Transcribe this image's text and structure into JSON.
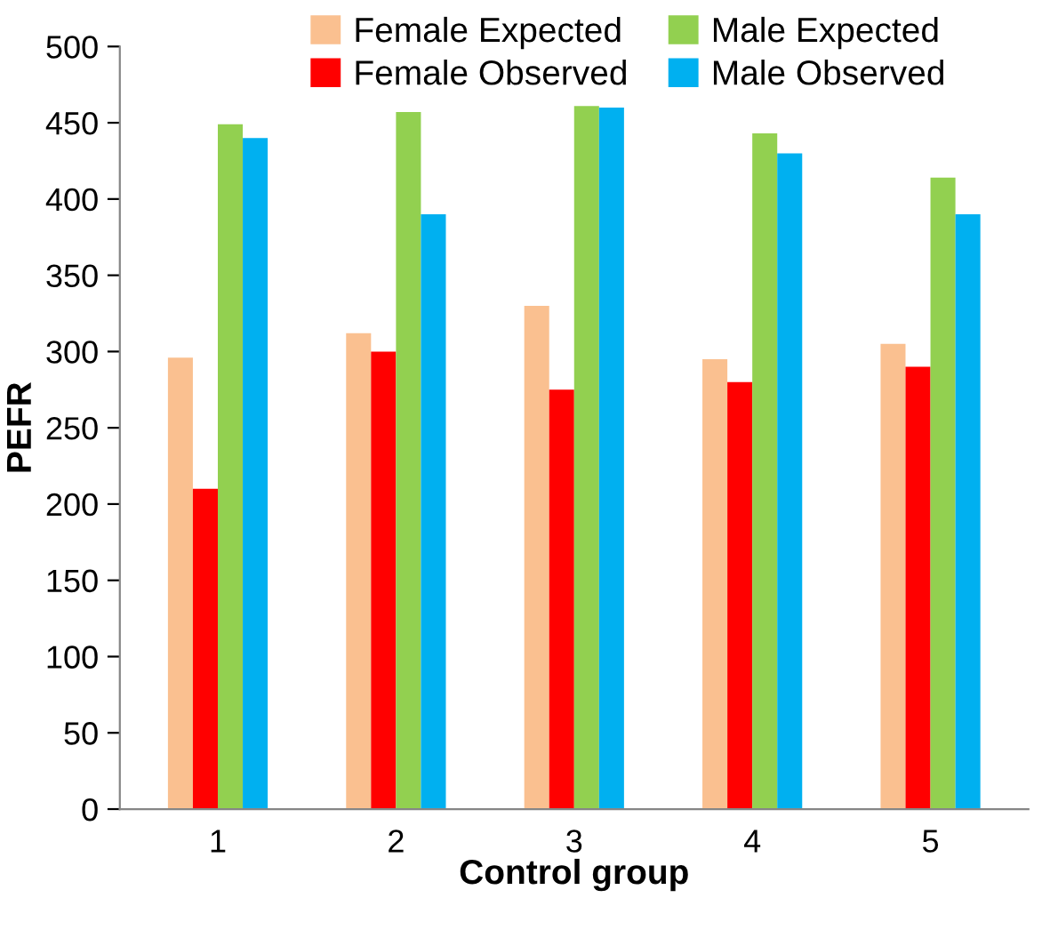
{
  "chart_data": {
    "type": "bar",
    "xlabel": "Control group",
    "ylabel": "PEFR",
    "categories": [
      "1",
      "2",
      "3",
      "4",
      "5"
    ],
    "series": [
      {
        "name": "Female Expected",
        "color": "#fac090",
        "values": [
          296,
          312,
          330,
          295,
          305
        ]
      },
      {
        "name": "Female Observed",
        "color": "#ff0000",
        "values": [
          210,
          300,
          275,
          280,
          290
        ]
      },
      {
        "name": "Male Expected",
        "color": "#92d050",
        "values": [
          449,
          457,
          461,
          443,
          414
        ]
      },
      {
        "name": "Male Observed",
        "color": "#00b0f0",
        "values": [
          440,
          390,
          460,
          430,
          390
        ]
      }
    ],
    "ylim": [
      0,
      500
    ],
    "yticks": [
      0,
      50,
      100,
      150,
      200,
      250,
      300,
      350,
      400,
      450,
      500
    ],
    "grid": false,
    "legend": "top"
  }
}
